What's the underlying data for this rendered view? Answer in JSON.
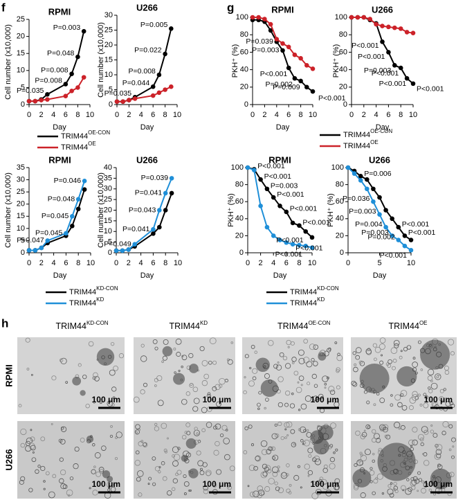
{
  "panel_labels": [
    "f",
    "g",
    "h"
  ],
  "chart_data": [
    {
      "type": "line",
      "title": "RPMI",
      "xlabel": "Day",
      "ylabel": "Cell number (x10,000)",
      "x": [
        0,
        1,
        2,
        3,
        6,
        7,
        8,
        9
      ],
      "xlim": [
        0,
        10
      ],
      "xticks": [
        0,
        2,
        4,
        6,
        8,
        10
      ],
      "ylim": [
        0,
        25
      ],
      "yticks": [
        0,
        5,
        10,
        15,
        20,
        25
      ],
      "legend": "below",
      "series": [
        {
          "name": "TRIM44",
          "name_sup": "OE-CON",
          "color": "#000000",
          "values": [
            1,
            1,
            1.5,
            3,
            6,
            9,
            14,
            21.5
          ]
        },
        {
          "name": "TRIM44",
          "name_sup": "OE",
          "color": "#cc2229",
          "values": [
            1,
            1,
            1.3,
            1.5,
            2.5,
            4,
            5,
            8
          ]
        }
      ],
      "annotations": [
        "P=0.003",
        "P=0.048",
        "P=0.008",
        "P=0.008",
        "P=0.035"
      ]
    },
    {
      "type": "line",
      "title": "U266",
      "xlabel": "Day",
      "ylabel": "Cell number (x10,000)",
      "x": [
        0,
        1,
        2,
        3,
        6,
        7,
        8,
        9
      ],
      "xlim": [
        0,
        10
      ],
      "xticks": [
        0,
        2,
        4,
        6,
        8,
        10
      ],
      "ylim": [
        0,
        30
      ],
      "yticks": [
        0,
        5,
        10,
        15,
        20,
        25,
        30
      ],
      "series": [
        {
          "color": "#000000",
          "values": [
            1,
            1,
            1.5,
            2.5,
            6,
            10,
            17,
            25.5
          ]
        },
        {
          "color": "#cc2229",
          "values": [
            1,
            1,
            1.5,
            2,
            3,
            4,
            5,
            6
          ]
        }
      ],
      "annotations": [
        "P=0.005",
        "P=0.022",
        "P=0.008",
        "P=0.044",
        "P=0.035"
      ]
    },
    {
      "type": "line",
      "title": "RPMI",
      "xlabel": "Day",
      "ylabel": "PKH⁺ (%)",
      "x": [
        0,
        1,
        2,
        3,
        4,
        5,
        6,
        7,
        8,
        9,
        10
      ],
      "xlim": [
        0,
        10
      ],
      "xticks": [
        0,
        2,
        4,
        6,
        8,
        10
      ],
      "ylim": [
        0,
        100
      ],
      "yticks": [
        0,
        20,
        40,
        60,
        80,
        100
      ],
      "legend": "below",
      "series": [
        {
          "name": "TRIM44",
          "name_sup": "OE-CON",
          "color": "#000000",
          "values": [
            97,
            97,
            95,
            85,
            72,
            62,
            42,
            30,
            27,
            20,
            15
          ]
        },
        {
          "name": "TRIM44",
          "name_sup": "OE",
          "color": "#cc2229",
          "values": [
            100,
            100,
            98,
            92,
            75,
            70,
            66,
            57,
            53,
            45,
            41
          ]
        }
      ],
      "annotations": [
        "P=0.039",
        "P=0.003",
        "P<0.001",
        "P=0.002",
        "P=0.009",
        "P<0.001"
      ]
    },
    {
      "type": "line",
      "title": "U266",
      "xlabel": "Day",
      "ylabel": "PKH⁺ (%)",
      "x": [
        0,
        1,
        2,
        3,
        4,
        5,
        6,
        7,
        8,
        9,
        10
      ],
      "xlim": [
        0,
        10
      ],
      "xticks": [
        0,
        2,
        4,
        6,
        8,
        10
      ],
      "ylim": [
        0,
        100
      ],
      "yticks": [
        0,
        20,
        40,
        60,
        80,
        100
      ],
      "series": [
        {
          "color": "#000000",
          "values": [
            100,
            100,
            100,
            97,
            93,
            72,
            60,
            45,
            42,
            30,
            24
          ]
        },
        {
          "color": "#cc2229",
          "values": [
            100,
            100,
            100,
            98,
            92,
            90,
            89,
            88,
            87,
            83,
            82
          ]
        }
      ],
      "annotations": [
        "P<0.001",
        "P<0.001",
        "P=0.003",
        "P<0.001",
        "P<0.001",
        "P<0.001"
      ]
    },
    {
      "type": "line",
      "title": "RPMI",
      "xlabel": "Day",
      "ylabel": "Cell number (x10,000)",
      "x": [
        0,
        1,
        2,
        3,
        6,
        7,
        8,
        9
      ],
      "xlim": [
        0,
        10
      ],
      "xticks": [
        0,
        2,
        4,
        6,
        8,
        10
      ],
      "ylim": [
        0,
        35
      ],
      "yticks": [
        0,
        5,
        10,
        15,
        20,
        25,
        30,
        35
      ],
      "legend": "below",
      "series": [
        {
          "name": "TRIM44",
          "name_sup": "KD-CON",
          "color": "#000000",
          "values": [
            1,
            1,
            2,
            4,
            7,
            11,
            18,
            26
          ]
        },
        {
          "name": "TRIM44",
          "name_sup": "KD",
          "color": "#1f8fd8",
          "values": [
            1,
            1,
            2,
            5,
            8,
            15,
            22,
            29.5
          ]
        }
      ],
      "annotations": [
        "P=0.046",
        "P=0.048",
        "P=0.045",
        "P=0.045",
        "P=0.047"
      ]
    },
    {
      "type": "line",
      "title": "U266",
      "xlabel": "Day",
      "ylabel": "Cell number (x10,000)",
      "x": [
        0,
        1,
        2,
        3,
        6,
        7,
        8,
        9
      ],
      "xlim": [
        0,
        10
      ],
      "xticks": [
        0,
        2,
        4,
        6,
        8,
        10
      ],
      "ylim": [
        0,
        40
      ],
      "yticks": [
        0,
        5,
        10,
        15,
        20,
        25,
        30,
        35,
        40
      ],
      "series": [
        {
          "color": "#000000",
          "values": [
            1,
            1,
            1.5,
            3,
            9,
            12,
            20,
            28
          ]
        },
        {
          "color": "#1f8fd8",
          "values": [
            1,
            1,
            1.5,
            4,
            11,
            20,
            28,
            35
          ]
        }
      ],
      "annotations": [
        "P=0.039",
        "P=0.041",
        "P=0.043",
        "P=0.041",
        "P=0.049"
      ]
    },
    {
      "type": "line",
      "title": "RPMI",
      "xlabel": "Day",
      "ylabel": "PKH⁺ (%)",
      "x": [
        0,
        1,
        2,
        3,
        4,
        5,
        6,
        7,
        8,
        9,
        10
      ],
      "xlim": [
        0,
        10
      ],
      "xticks": [
        0,
        2,
        4,
        6,
        8,
        10
      ],
      "ylim": [
        0,
        100
      ],
      "yticks": [
        0,
        20,
        40,
        60,
        80,
        100
      ],
      "legend": "below",
      "series": [
        {
          "name": "TRIM44",
          "name_sup": "KD-CON",
          "color": "#000000",
          "values": [
            100,
            98,
            86,
            75,
            65,
            55,
            48,
            35,
            32,
            25,
            18
          ]
        },
        {
          "name": "TRIM44",
          "name_sup": "KD",
          "color": "#1f8fd8",
          "values": [
            100,
            97,
            55,
            30,
            20,
            15,
            12,
            10,
            9,
            8,
            6
          ]
        }
      ],
      "annotations": [
        "P<0.001",
        "P<0.001",
        "P=0.003",
        "P<0.001",
        "P<0.001",
        "P<0.001",
        "P<0.001",
        "P<0.001",
        "P<0.001"
      ]
    },
    {
      "type": "line",
      "title": "U266",
      "xlabel": "Day",
      "ylabel": "PKH⁺ (%)",
      "x": [
        0,
        1,
        2,
        3,
        4,
        5,
        6,
        7,
        8,
        9,
        10
      ],
      "xlim": [
        0,
        10
      ],
      "xticks": [
        0,
        5,
        10
      ],
      "ylim": [
        0,
        100
      ],
      "yticks": [
        0,
        20,
        40,
        60,
        80,
        100
      ],
      "series": [
        {
          "color": "#000000",
          "values": [
            100,
            96,
            90,
            86,
            75,
            65,
            50,
            40,
            30,
            20,
            15
          ]
        },
        {
          "color": "#1f8fd8",
          "values": [
            100,
            93,
            85,
            75,
            60,
            45,
            30,
            20,
            15,
            8,
            3
          ]
        }
      ],
      "annotations": [
        "P=0.006",
        "P=0.036",
        "P=0.003",
        "P=0.004",
        "P=0.003",
        "P<0.001",
        "P=0.002",
        "P<0.001",
        "P<0.001"
      ]
    }
  ],
  "micrographs": {
    "columns": [
      {
        "name": "TRIM44",
        "sup": "KD-CON"
      },
      {
        "name": "TRIM44",
        "sup": "KD"
      },
      {
        "name": "TRIM44",
        "sup": "OE-CON"
      },
      {
        "name": "TRIM44",
        "sup": "OE"
      }
    ],
    "rows": [
      "RPMI",
      "U266"
    ],
    "scale_bar": "100 μm"
  }
}
